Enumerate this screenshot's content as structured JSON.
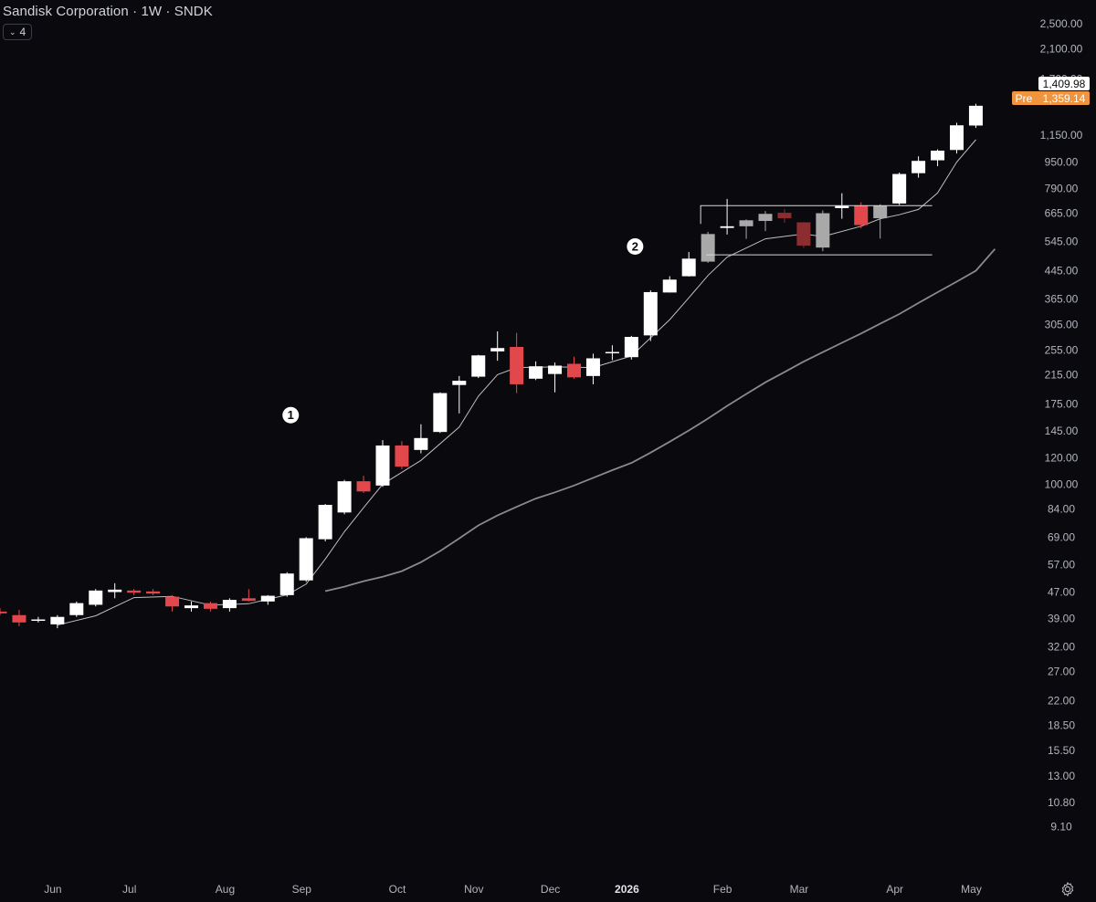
{
  "header": {
    "title": "Sandisk Corporation · 1W · SNDK",
    "indicator_count": "4"
  },
  "price_labels": {
    "last": "1,409.98",
    "pre_tag": "Pre",
    "pre_value": "1,359.14"
  },
  "colors": {
    "background": "#0a0a0e",
    "up_candle": "#ffffff",
    "down_candle": "#e2474b",
    "faded_up": "#a9a9a9",
    "faded_down": "#8b2c2e",
    "ma_fast": "#bfbfbf",
    "ma_slow": "#8a8a8a",
    "pre_badge": "#f0943d"
  },
  "icons": {
    "settings": "gear-icon",
    "collapse": "chevron-down-icon"
  },
  "chart_data": {
    "type": "candlestick",
    "title": "Sandisk Corporation · 1W · SNDK",
    "y_scale": "log",
    "y_ticks": [
      "2,500.00",
      "2,100.00",
      "1,700.00",
      "1,150.00",
      "950.00",
      "790.00",
      "665.00",
      "545.00",
      "445.00",
      "365.00",
      "305.00",
      "255.00",
      "215.00",
      "175.00",
      "145.00",
      "120.00",
      "100.00",
      "84.00",
      "69.00",
      "57.00",
      "47.00",
      "39.00",
      "32.00",
      "27.00",
      "22.00",
      "18.50",
      "15.50",
      "13.00",
      "10.80",
      "9.10"
    ],
    "y_tick_values": [
      2500,
      2100,
      1700,
      1150,
      950,
      790,
      665,
      545,
      445,
      365,
      305,
      255,
      215,
      175,
      145,
      120,
      100,
      84,
      69,
      57,
      47,
      39,
      32,
      27,
      22,
      18.5,
      15.5,
      13,
      10.8,
      9.1
    ],
    "x_ticks": [
      {
        "label": "Jun",
        "week": 2
      },
      {
        "label": "Jul",
        "week": 6
      },
      {
        "label": "Aug",
        "week": 11
      },
      {
        "label": "Sep",
        "week": 15
      },
      {
        "label": "Oct",
        "week": 20
      },
      {
        "label": "Nov",
        "week": 24
      },
      {
        "label": "Dec",
        "week": 28
      },
      {
        "label": "2026",
        "week": 32,
        "bold": true
      },
      {
        "label": "Feb",
        "week": 37
      },
      {
        "label": "Mar",
        "week": 41
      },
      {
        "label": "Apr",
        "week": 46
      },
      {
        "label": "May",
        "week": 50
      }
    ],
    "candles": [
      {
        "o": 41,
        "h": 42,
        "l": 40,
        "c": 40.5
      },
      {
        "o": 40,
        "h": 41.5,
        "l": 37,
        "c": 38
      },
      {
        "o": 38.5,
        "h": 39.5,
        "l": 38,
        "c": 38.8
      },
      {
        "o": 37.5,
        "h": 40,
        "l": 36.5,
        "c": 39.5
      },
      {
        "o": 40,
        "h": 44,
        "l": 39.5,
        "c": 43.5
      },
      {
        "o": 43,
        "h": 48,
        "l": 42.5,
        "c": 47.5
      },
      {
        "o": 47,
        "h": 50,
        "l": 45,
        "c": 47.8
      },
      {
        "o": 47.5,
        "h": 48,
        "l": 46,
        "c": 46.8
      },
      {
        "o": 47.2,
        "h": 48,
        "l": 46,
        "c": 46.5
      },
      {
        "o": 45.5,
        "h": 46,
        "l": 41,
        "c": 42.5
      },
      {
        "o": 42,
        "h": 44,
        "l": 41,
        "c": 42.8
      },
      {
        "o": 43.5,
        "h": 44,
        "l": 41,
        "c": 41.8
      },
      {
        "o": 42,
        "h": 45,
        "l": 41,
        "c": 44.5
      },
      {
        "o": 45,
        "h": 48,
        "l": 44,
        "c": 44.2
      },
      {
        "o": 44,
        "h": 46,
        "l": 43,
        "c": 45.8
      },
      {
        "o": 46,
        "h": 54,
        "l": 45.5,
        "c": 53.5
      },
      {
        "o": 51,
        "h": 69,
        "l": 50.5,
        "c": 68.5
      },
      {
        "o": 68,
        "h": 87,
        "l": 67,
        "c": 86.5
      },
      {
        "o": 82,
        "h": 103,
        "l": 81,
        "c": 102
      },
      {
        "o": 102,
        "h": 106,
        "l": 94,
        "c": 95
      },
      {
        "o": 99,
        "h": 136,
        "l": 98,
        "c": 131
      },
      {
        "o": 131,
        "h": 135,
        "l": 111,
        "c": 113
      },
      {
        "o": 127,
        "h": 152,
        "l": 124,
        "c": 138
      },
      {
        "o": 144,
        "h": 190,
        "l": 143,
        "c": 189
      },
      {
        "o": 200,
        "h": 213,
        "l": 164,
        "c": 206
      },
      {
        "o": 212,
        "h": 247,
        "l": 210,
        "c": 246
      },
      {
        "o": 253,
        "h": 291,
        "l": 237,
        "c": 259
      },
      {
        "o": 261,
        "h": 288,
        "l": 189,
        "c": 201
      },
      {
        "o": 209,
        "h": 236,
        "l": 207,
        "c": 228
      },
      {
        "o": 216,
        "h": 234,
        "l": 190,
        "c": 229
      },
      {
        "o": 232,
        "h": 244,
        "l": 209,
        "c": 211
      },
      {
        "o": 213,
        "h": 249,
        "l": 201,
        "c": 241
      },
      {
        "o": 251,
        "h": 264,
        "l": 238,
        "c": 252
      },
      {
        "o": 243,
        "h": 282,
        "l": 239,
        "c": 280
      },
      {
        "o": 283,
        "h": 388,
        "l": 272,
        "c": 383
      },
      {
        "o": 382,
        "h": 428,
        "l": 382,
        "c": 418
      },
      {
        "o": 428,
        "h": 507,
        "l": 427,
        "c": 484
      },
      {
        "o": 474,
        "h": 584,
        "l": 470,
        "c": 575,
        "faded": true
      },
      {
        "o": 600,
        "h": 735,
        "l": 573,
        "c": 607
      },
      {
        "o": 607,
        "h": 637,
        "l": 556,
        "c": 633,
        "faded": true
      },
      {
        "o": 630,
        "h": 675,
        "l": 587,
        "c": 662,
        "faded": true
      },
      {
        "o": 667,
        "h": 684,
        "l": 622,
        "c": 642,
        "faded": true
      },
      {
        "o": 624,
        "h": 625,
        "l": 522,
        "c": 530,
        "faded": true
      },
      {
        "o": 523,
        "h": 678,
        "l": 510,
        "c": 665,
        "faded": true
      },
      {
        "o": 689,
        "h": 765,
        "l": 640,
        "c": 702
      },
      {
        "o": 702,
        "h": 718,
        "l": 598,
        "c": 612
      },
      {
        "o": 642,
        "h": 708,
        "l": 557,
        "c": 700,
        "faded": true
      },
      {
        "o": 712,
        "h": 884,
        "l": 705,
        "c": 875
      },
      {
        "o": 880,
        "h": 990,
        "l": 853,
        "c": 959
      },
      {
        "o": 963,
        "h": 1040,
        "l": 924,
        "c": 1030
      },
      {
        "o": 1035,
        "h": 1252,
        "l": 1010,
        "c": 1230
      },
      {
        "o": 1228,
        "h": 1430,
        "l": 1208,
        "c": 1410
      }
    ],
    "ma_fast": [
      [
        3,
        37.3
      ],
      [
        5,
        39.8
      ],
      [
        7,
        45.2
      ],
      [
        9,
        45.6
      ],
      [
        11,
        42.9
      ],
      [
        13,
        43.3
      ],
      [
        15,
        46.1
      ],
      [
        16,
        49.7
      ],
      [
        17,
        59.2
      ],
      [
        18,
        71.7
      ],
      [
        19,
        84.8
      ],
      [
        20,
        99.9
      ],
      [
        22,
        118
      ],
      [
        24,
        149
      ],
      [
        25,
        185
      ],
      [
        26,
        215
      ],
      [
        27,
        226
      ],
      [
        29,
        227
      ],
      [
        31,
        226
      ],
      [
        33,
        245
      ],
      [
        35,
        316
      ],
      [
        36,
        368
      ],
      [
        37,
        430
      ],
      [
        38,
        489
      ],
      [
        40,
        556
      ],
      [
        42,
        575
      ],
      [
        43,
        565
      ],
      [
        45,
        607
      ],
      [
        46,
        640
      ],
      [
        47,
        658
      ],
      [
        48,
        683
      ],
      [
        49,
        766
      ],
      [
        50,
        951
      ],
      [
        51,
        1112
      ]
    ],
    "ma_slow": [
      [
        17,
        47.3
      ],
      [
        18,
        48.8
      ],
      [
        19,
        50.7
      ],
      [
        20,
        52.3
      ],
      [
        21,
        54.4
      ],
      [
        22,
        57.9
      ],
      [
        23,
        62.6
      ],
      [
        24,
        68.4
      ],
      [
        25,
        74.9
      ],
      [
        26,
        80.3
      ],
      [
        27,
        85.3
      ],
      [
        28,
        90.4
      ],
      [
        29,
        94.4
      ],
      [
        30,
        99.0
      ],
      [
        31,
        104.5
      ],
      [
        32,
        110.2
      ],
      [
        33,
        116.0
      ],
      [
        34,
        124.6
      ],
      [
        35,
        134.5
      ],
      [
        36,
        145.5
      ],
      [
        37,
        158.1
      ],
      [
        38,
        172.8
      ],
      [
        39,
        187.8
      ],
      [
        40,
        203.7
      ],
      [
        41,
        218.8
      ],
      [
        42,
        235.5
      ],
      [
        43,
        251.7
      ],
      [
        44,
        268.7
      ],
      [
        45,
        286.8
      ],
      [
        46,
        307.0
      ],
      [
        47,
        328.6
      ],
      [
        48,
        355.0
      ],
      [
        49,
        382.7
      ],
      [
        50,
        412.0
      ],
      [
        51,
        444.8
      ],
      [
        52,
        518
      ]
    ],
    "consolidation_box": {
      "week_start": 37,
      "week_end": 48,
      "top": 701,
      "bottom": 497
    },
    "annotations": [
      {
        "label": "1",
        "week": 15,
        "price": 162
      },
      {
        "label": "2",
        "week": 33,
        "price": 527
      }
    ]
  }
}
